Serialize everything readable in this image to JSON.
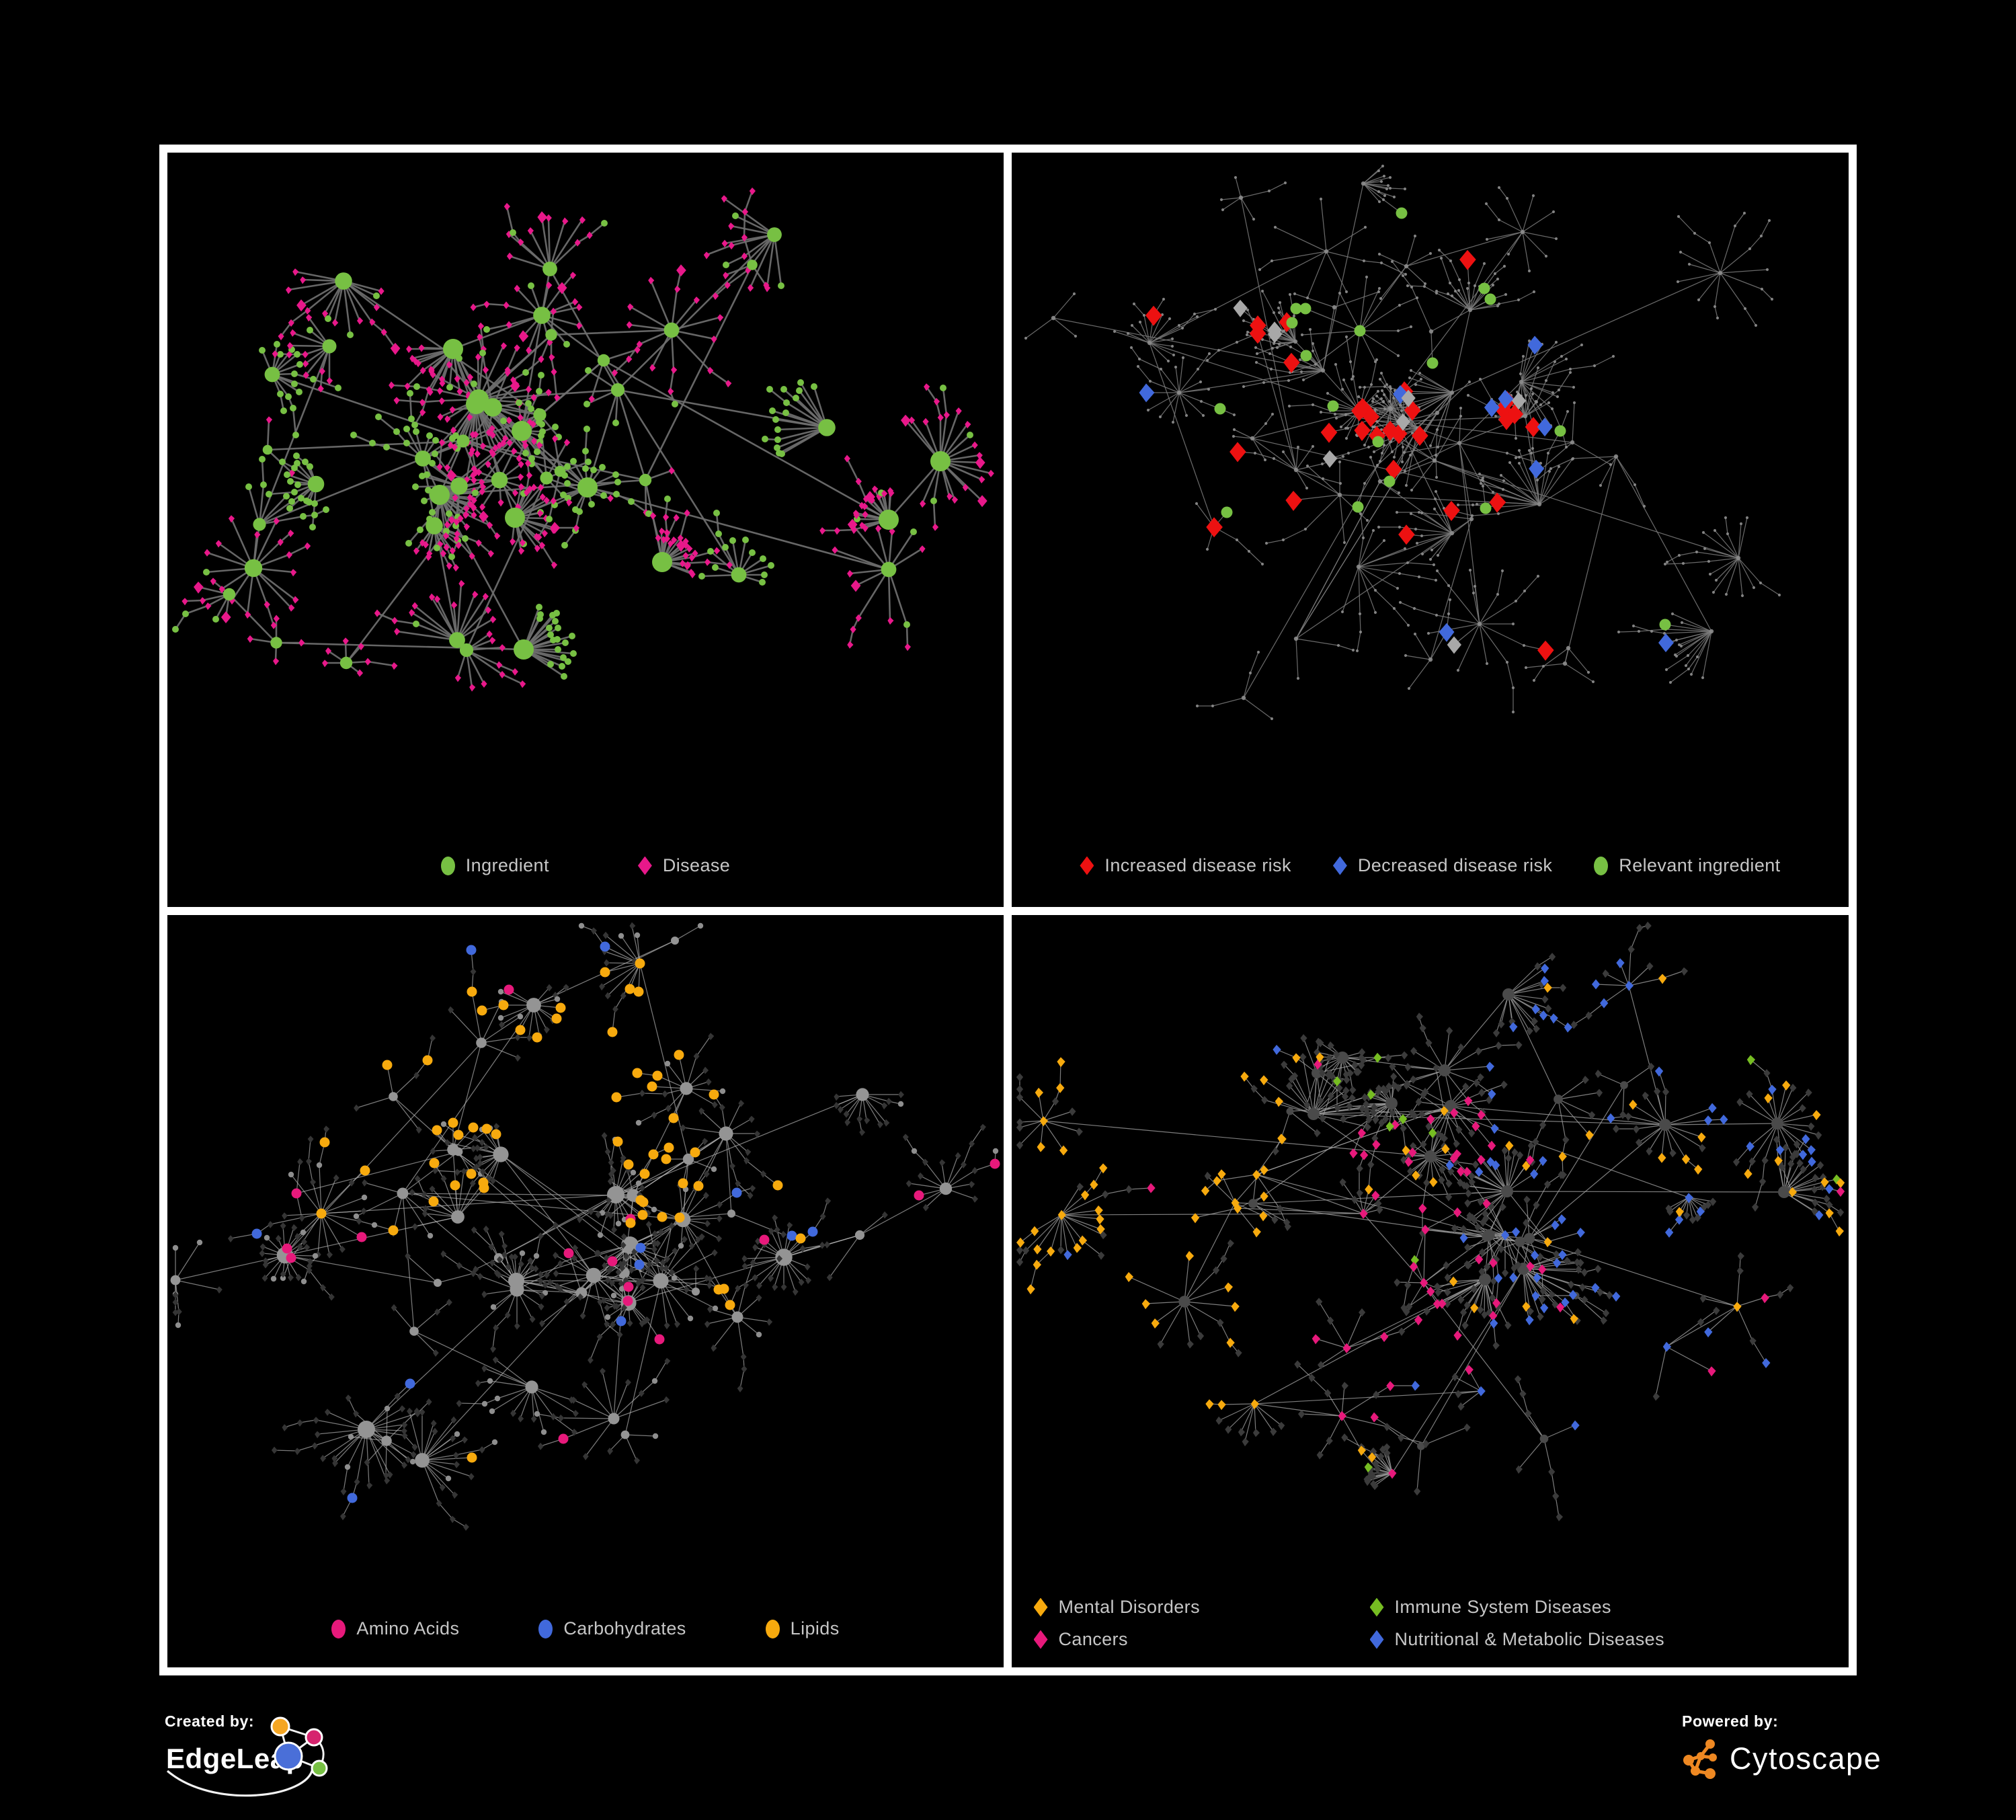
{
  "figure": {
    "background": "#000000",
    "panel_border_color": "#FFFFFF",
    "legend_text_color": "#C6C6C6"
  },
  "footer": {
    "created_by_label": "Created by:",
    "edgeleap_name": "EdgeLeap",
    "powered_by_label": "Powered by:",
    "cytoscape_name": "Cytoscape"
  },
  "chart_data": {
    "type": "network",
    "title": "",
    "description": "Four panels showing an ingredient-disease association network on black background; same topology styled four ways: node types, disease-risk highlights, nutrient classes, and disease classes.",
    "panels": [
      {
        "id": "ingredient-disease",
        "position": "top-left",
        "legend": [
          {
            "label": "Ingredient",
            "color": "#77C043",
            "shape": "circle"
          },
          {
            "label": "Disease",
            "color": "#E8188A",
            "shape": "diamond"
          }
        ],
        "render": {
          "mode": "twotone",
          "seed": 11,
          "hubs": 44,
          "maxLeaves": 21,
          "chainProb": 0.22,
          "extraHubLinks": 16,
          "legendSpace": 150,
          "edge": {
            "color": "#6F6F6F",
            "width": 2.6,
            "opacity": 0.92
          },
          "ingredient": {
            "color": "#77C043",
            "hubMin": 6,
            "hubMax": 15,
            "leafR": 5
          },
          "disease": {
            "color": "#E8188A",
            "size": 5.6
          },
          "greenHubProb": 0.26,
          "greenLeafProb": 0.09
        }
      },
      {
        "id": "disease-risk",
        "position": "top-right",
        "legend": [
          {
            "label": "Increased disease risk",
            "color": "#ED1111",
            "shape": "diamond"
          },
          {
            "label": "Decreased disease risk",
            "color": "#4169DC",
            "shape": "diamond"
          },
          {
            "label": "Relevant ingredient",
            "color": "#77C043",
            "shape": "circle"
          }
        ],
        "render": {
          "mode": "risk",
          "seed": 23,
          "hubs": 46,
          "maxLeaves": 18,
          "chainProb": 0.3,
          "extraHubLinks": 14,
          "legendSpace": 150,
          "edge": {
            "color": "#7A7A7A",
            "width": 1.25,
            "opacity": 0.85
          },
          "base": {
            "color": "#8C8C8C",
            "hubR": 3.2,
            "leafR": 2.1,
            "opacity": 0.9
          },
          "highlights": [
            {
              "color": "#ED1111",
              "shape": "diamond",
              "size": 15,
              "count": 30,
              "region": [
                0.22,
                0.75,
                0.15,
                0.55
              ],
              "leak": 0.12
            },
            {
              "color": "#4169DC",
              "shape": "diamond",
              "size": 14,
              "count": 9,
              "region": [
                0.06,
                0.3,
                0.2,
                0.48
              ],
              "leak": 0.22
            },
            {
              "color": "#A8A8A8",
              "shape": "diamond",
              "size": 13,
              "count": 8,
              "region": [
                0.1,
                0.65,
                0.2,
                0.55
              ],
              "leak": 0.15
            },
            {
              "color": "#77C043",
              "shape": "circle",
              "size": 8.5,
              "count": 18,
              "region": [
                0.08,
                0.7,
                0.1,
                0.6
              ],
              "leak": 0.25
            }
          ]
        }
      },
      {
        "id": "nutrient-classes",
        "position": "bottom-left",
        "legend": [
          {
            "label": "Amino Acids",
            "color": "#E7197B",
            "shape": "circle"
          },
          {
            "label": "Carbohydrates",
            "color": "#4169DC",
            "shape": "circle"
          },
          {
            "label": "Lipids",
            "color": "#F7AA0E",
            "shape": "circle"
          }
        ],
        "render": {
          "mode": "nutrients",
          "seed": 37,
          "hubs": 44,
          "maxLeaves": 20,
          "chainProb": 0.24,
          "extraHubLinks": 20,
          "legendSpace": 160,
          "edge": {
            "color": "#ACACAC",
            "width": 1.25,
            "opacity": 0.7
          },
          "leaf": {
            "color": "#353535",
            "size": 5.4
          },
          "hub": {
            "color": "#949494",
            "rMin": 5,
            "rMax": 13
          },
          "grayLeafProb": 0.13,
          "grayLeafColor": "#8E8E8E",
          "highlights": [
            {
              "color": "#F7AA0E",
              "shape": "circle",
              "size": 7.5,
              "count": 58,
              "region": [
                0.18,
                0.62,
                0.06,
                0.5
              ],
              "leak": 0.1
            },
            {
              "color": "#E7197B",
              "shape": "circle",
              "size": 7.5,
              "count": 15,
              "region": [
                0.05,
                0.8,
                0.45,
                0.97
              ],
              "leak": 0.3
            },
            {
              "color": "#4169DC",
              "shape": "circle",
              "size": 7.5,
              "count": 11,
              "region": [
                0.22,
                0.52,
                0.04,
                0.3
              ],
              "leak": 0.2
            }
          ]
        }
      },
      {
        "id": "disease-classes",
        "position": "bottom-right",
        "legend": [
          {
            "label": "Mental Disorders",
            "color": "#F7AA0E",
            "shape": "diamond"
          },
          {
            "label": "Immune System Diseases",
            "color": "#76BD22",
            "shape": "diamond"
          },
          {
            "label": "Cancers",
            "color": "#E7197B",
            "shape": "diamond"
          },
          {
            "label": "Nutritional & Metabolic Diseases",
            "color": "#4169DC",
            "shape": "diamond"
          }
        ],
        "render": {
          "mode": "classes",
          "seed": 53,
          "hubs": 46,
          "maxLeaves": 20,
          "chainProb": 0.26,
          "extraHubLinks": 18,
          "legendSpace": 175,
          "edge": {
            "color": "#9C9C9C",
            "width": 1.2,
            "opacity": 0.8
          },
          "leaf": {
            "color": "#3B3B3B",
            "size": 6.2
          },
          "hub": {
            "color": "#4A4A4A",
            "rMin": 4.5,
            "rMax": 9
          },
          "highlights": [
            {
              "color": "#F7AA0E",
              "shape": "diamond",
              "size": 7.5,
              "count": 85,
              "region": [
                0.02,
                0.33,
                0.22,
                0.8
              ],
              "leak": 0.06
            },
            {
              "color": "#E7197B",
              "shape": "diamond",
              "size": 7.5,
              "count": 52,
              "region": [
                0.36,
                0.62,
                0.28,
                0.8
              ],
              "leak": 0.1
            },
            {
              "color": "#4169DC",
              "shape": "diamond",
              "size": 7.5,
              "count": 66,
              "region": [
                0.55,
                0.98,
                0.02,
                0.95
              ],
              "leak": 0.15
            },
            {
              "color": "#76BD22",
              "shape": "diamond",
              "size": 7.5,
              "count": 10,
              "region": [
                0.3,
                0.6,
                0.18,
                0.6
              ],
              "leak": 0.3
            }
          ]
        }
      }
    ]
  }
}
